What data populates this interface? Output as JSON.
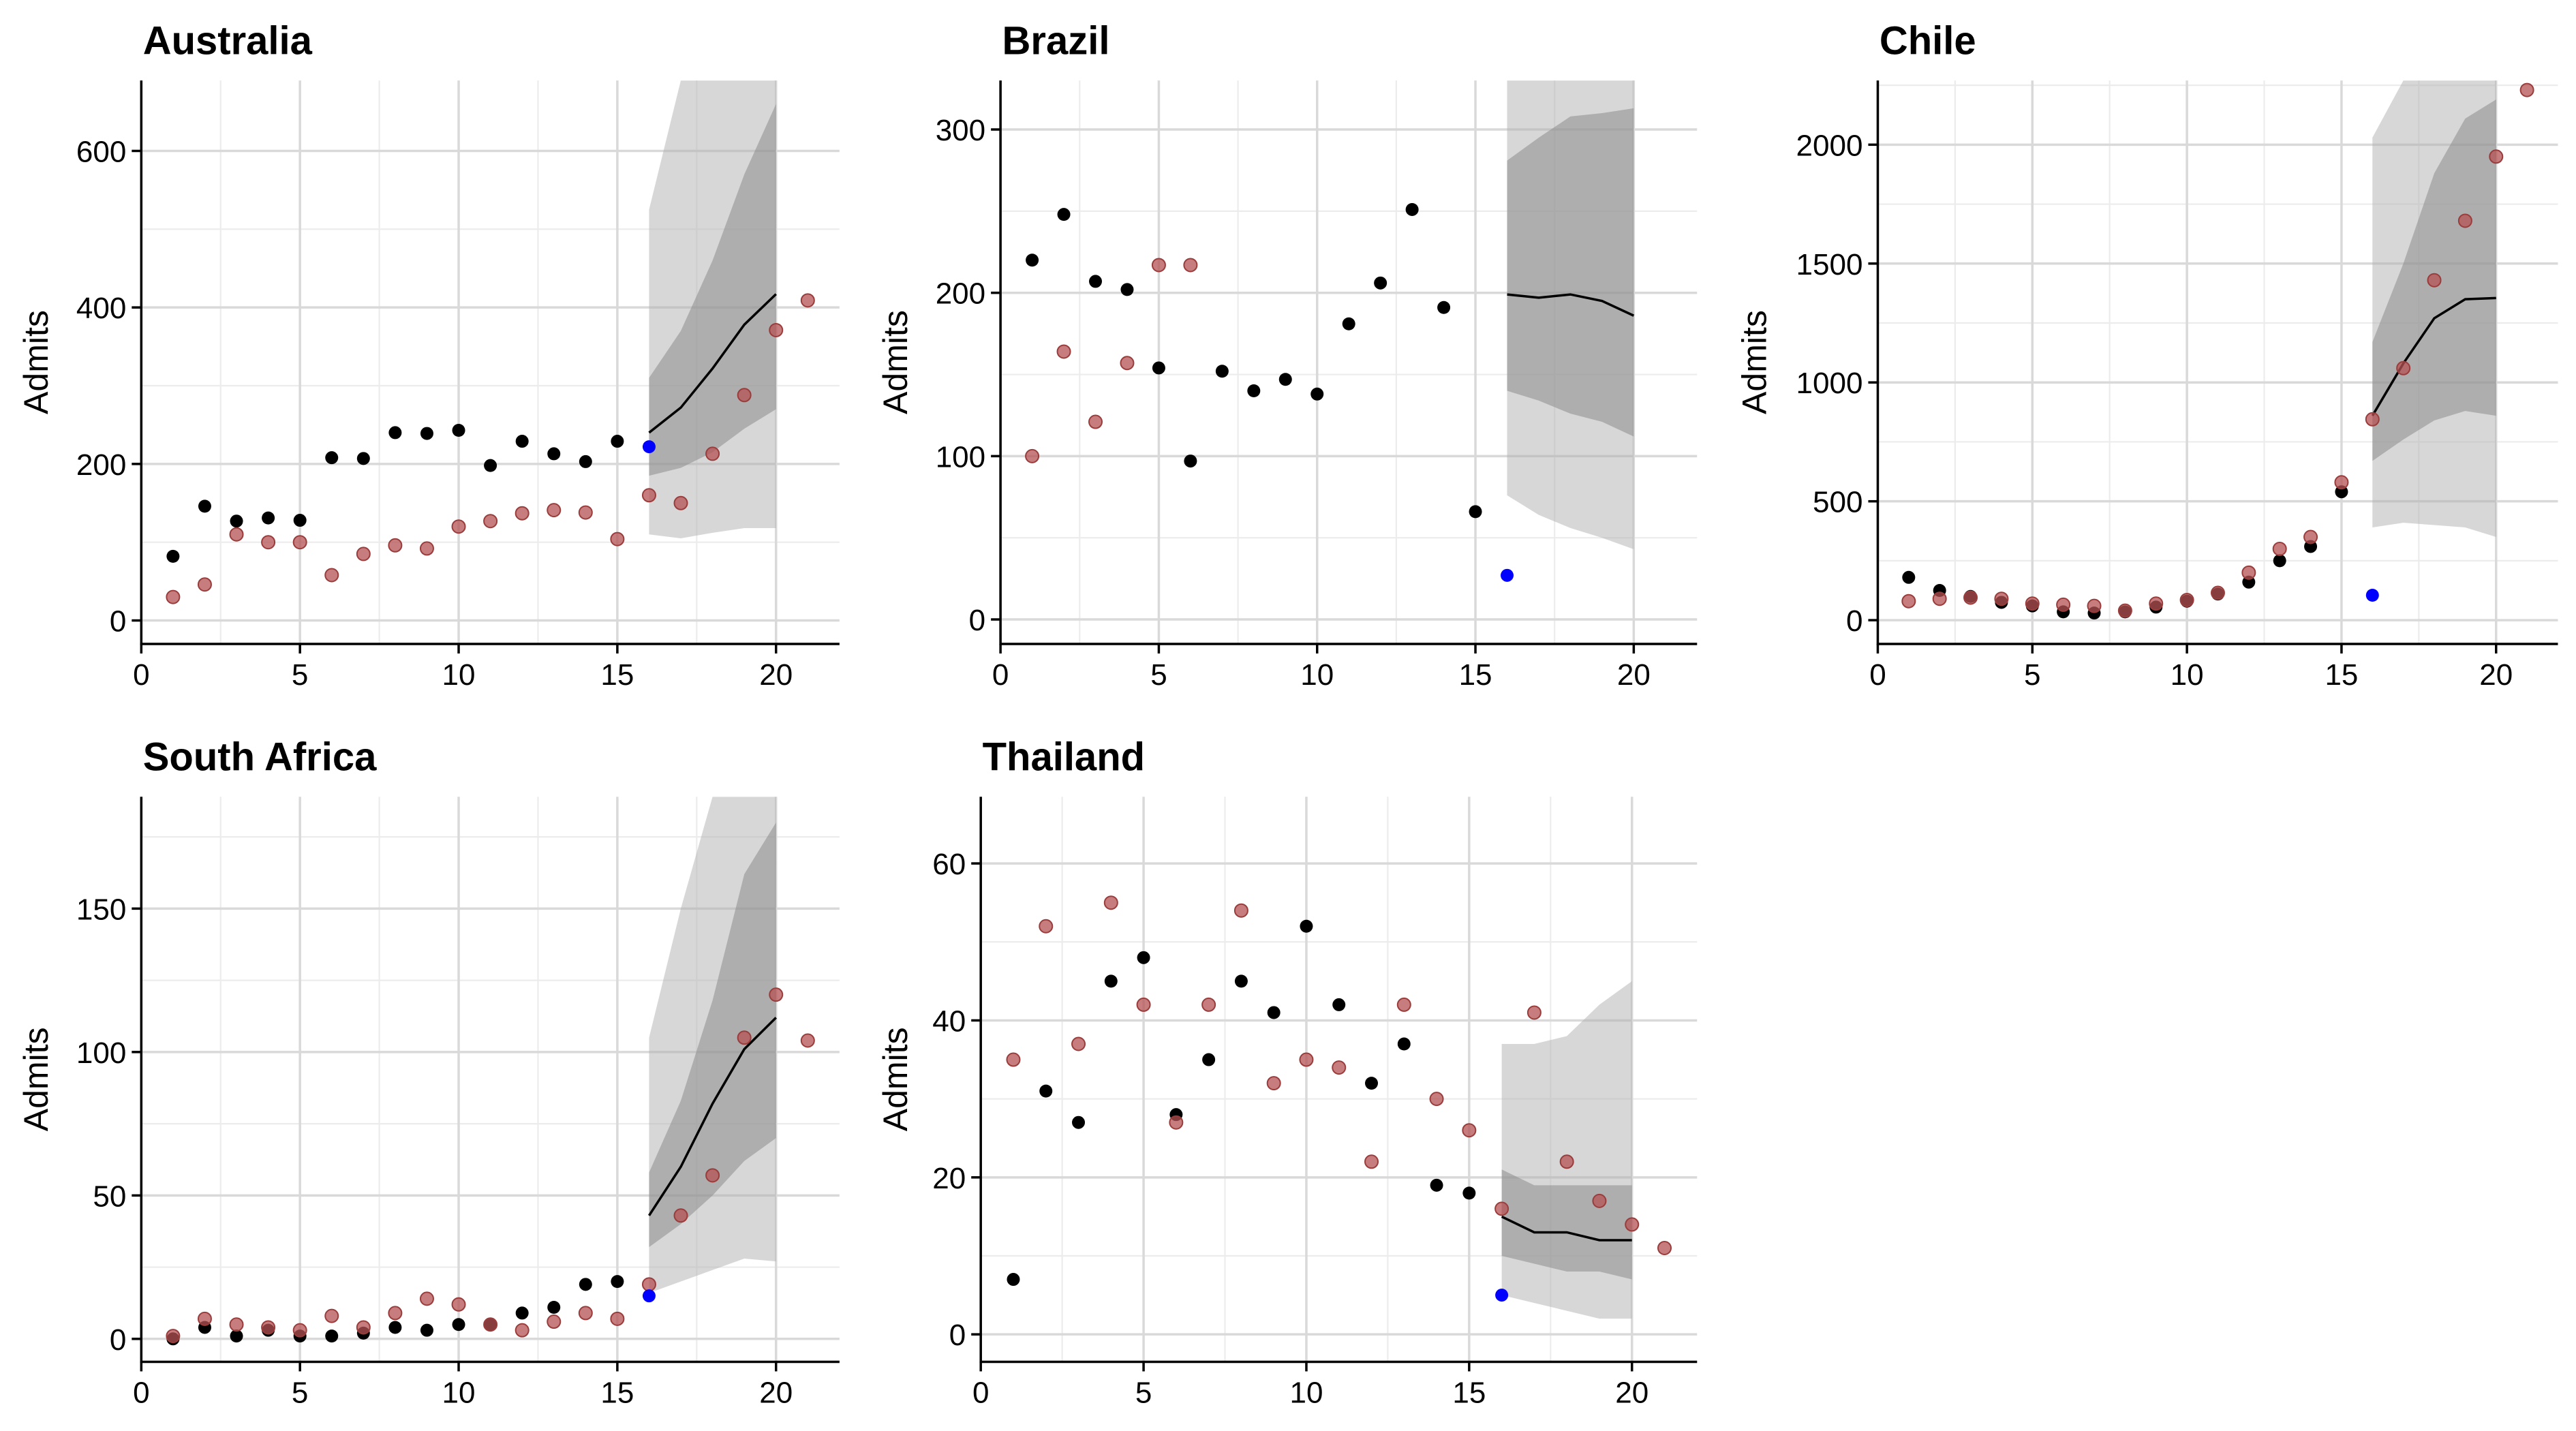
{
  "chart_data": [
    {
      "type": "scatter",
      "title": "Australia",
      "ylabel": "Admits",
      "xlim": [
        0,
        22
      ],
      "ylim": [
        -30,
        690
      ],
      "xticks": [
        0,
        5,
        10,
        15,
        20
      ],
      "yticks": [
        0,
        200,
        400,
        600
      ],
      "grid": true,
      "series": [
        {
          "role": "observed",
          "color": "#000000",
          "x": [
            1,
            2,
            3,
            4,
            5,
            6,
            7,
            8,
            9,
            10,
            11,
            12,
            13,
            14,
            15
          ],
          "y": [
            82,
            146,
            127,
            131,
            128,
            208,
            207,
            240,
            239,
            243,
            198,
            229,
            213,
            203,
            229
          ]
        },
        {
          "role": "comparison",
          "color": "#b45252",
          "x": [
            1,
            2,
            3,
            4,
            5,
            6,
            7,
            8,
            9,
            10,
            11,
            12,
            13,
            14,
            15,
            16,
            17,
            18,
            19,
            20,
            21
          ],
          "y": [
            30,
            46,
            110,
            100,
            100,
            58,
            85,
            96,
            92,
            120,
            127,
            137,
            141,
            138,
            104,
            160,
            150,
            213,
            288,
            371,
            409
          ]
        },
        {
          "role": "current",
          "color": "#0000ff",
          "x": [
            16
          ],
          "y": [
            222
          ]
        },
        {
          "role": "forecast",
          "color": "#000000",
          "x": [
            16,
            17,
            18,
            19,
            20
          ],
          "median": [
            240,
            272,
            322,
            378,
            417
          ],
          "inner": [
            [
              185,
              310
            ],
            [
              195,
              370
            ],
            [
              215,
              460
            ],
            [
              245,
              570
            ],
            [
              270,
              660
            ]
          ],
          "outer": [
            [
              110,
              525
            ],
            [
              105,
              690
            ],
            [
              112,
              690
            ],
            [
              118,
              690
            ],
            [
              118,
              690
            ]
          ]
        }
      ]
    },
    {
      "type": "scatter",
      "title": "Brazil",
      "ylabel": "Admits",
      "xlim": [
        0,
        22
      ],
      "ylim": [
        -15,
        330
      ],
      "xticks": [
        0,
        5,
        10,
        15,
        20
      ],
      "yticks": [
        0,
        100,
        200,
        300
      ],
      "grid": true,
      "series": [
        {
          "role": "observed",
          "color": "#000000",
          "x": [
            1,
            2,
            3,
            4,
            5,
            6,
            7,
            8,
            9,
            10,
            11,
            12,
            13,
            14,
            15
          ],
          "y": [
            220,
            248,
            207,
            202,
            154,
            97,
            152,
            140,
            147,
            138,
            181,
            206,
            251,
            191,
            66
          ]
        },
        {
          "role": "comparison",
          "color": "#b45252",
          "x": [
            1,
            2,
            3,
            4,
            5,
            6
          ],
          "y": [
            100,
            164,
            121,
            157,
            217,
            217
          ]
        },
        {
          "role": "current",
          "color": "#0000ff",
          "x": [
            16
          ],
          "y": [
            27
          ]
        },
        {
          "role": "forecast",
          "color": "#000000",
          "x": [
            16,
            17,
            18,
            19,
            20
          ],
          "median": [
            199,
            197,
            199,
            195,
            186
          ],
          "inner": [
            [
              140,
              281
            ],
            [
              134,
              295
            ],
            [
              126,
              308
            ],
            [
              121,
              310
            ],
            [
              112,
              313
            ]
          ],
          "outer": [
            [
              76,
              330
            ],
            [
              64,
              330
            ],
            [
              56,
              330
            ],
            [
              50,
              330
            ],
            [
              43,
              330
            ]
          ]
        }
      ]
    },
    {
      "type": "scatter",
      "title": "Chile",
      "ylabel": "Admits",
      "xlim": [
        0,
        22
      ],
      "ylim": [
        -100,
        2270
      ],
      "xticks": [
        0,
        5,
        10,
        15,
        20
      ],
      "yticks": [
        0,
        500,
        1000,
        1500,
        2000
      ],
      "grid": true,
      "series": [
        {
          "role": "observed",
          "color": "#000000",
          "x": [
            1,
            2,
            3,
            4,
            5,
            6,
            7,
            8,
            9,
            10,
            11,
            12,
            13,
            14,
            15
          ],
          "y": [
            180,
            125,
            100,
            75,
            60,
            35,
            30,
            35,
            55,
            80,
            110,
            160,
            250,
            310,
            540
          ]
        },
        {
          "role": "comparison",
          "color": "#b45252",
          "x": [
            1,
            2,
            3,
            4,
            5,
            6,
            7,
            8,
            9,
            10,
            11,
            12,
            13,
            14,
            15,
            16,
            17,
            18,
            19,
            20,
            21
          ],
          "y": [
            80,
            90,
            95,
            90,
            70,
            65,
            60,
            40,
            70,
            85,
            115,
            200,
            300,
            350,
            580,
            845,
            1060,
            1430,
            1680,
            1950,
            2230
          ]
        },
        {
          "role": "current",
          "color": "#0000ff",
          "x": [
            16
          ],
          "y": [
            105
          ]
        },
        {
          "role": "forecast",
          "color": "#000000",
          "x": [
            16,
            17,
            18,
            19,
            20
          ],
          "median": [
            860,
            1080,
            1270,
            1350,
            1355
          ],
          "inner": [
            [
              670,
              1170
            ],
            [
              760,
              1500
            ],
            [
              840,
              1880
            ],
            [
              880,
              2110
            ],
            [
              860,
              2190
            ]
          ],
          "outer": [
            [
              390,
              2030
            ],
            [
              410,
              2270
            ],
            [
              400,
              2270
            ],
            [
              390,
              2270
            ],
            [
              350,
              2270
            ]
          ]
        }
      ]
    },
    {
      "type": "scatter",
      "title": "South Africa",
      "ylabel": "Admits",
      "xlim": [
        0,
        22
      ],
      "ylim": [
        -8,
        189
      ],
      "xticks": [
        0,
        5,
        10,
        15,
        20
      ],
      "yticks": [
        0,
        50,
        100,
        150
      ],
      "grid": true,
      "series": [
        {
          "role": "observed",
          "color": "#000000",
          "x": [
            1,
            2,
            3,
            4,
            5,
            6,
            7,
            8,
            9,
            10,
            11,
            12,
            13,
            14,
            15
          ],
          "y": [
            0,
            4,
            1,
            3,
            1,
            1,
            2,
            4,
            3,
            5,
            5,
            9,
            11,
            19,
            20
          ]
        },
        {
          "role": "comparison",
          "color": "#b45252",
          "x": [
            1,
            2,
            3,
            4,
            5,
            6,
            7,
            8,
            9,
            10,
            11,
            12,
            13,
            14,
            15,
            16,
            17,
            18,
            19,
            20,
            21
          ],
          "y": [
            1,
            7,
            5,
            4,
            3,
            8,
            4,
            9,
            14,
            12,
            5,
            3,
            6,
            9,
            7,
            19,
            43,
            57,
            105,
            120,
            104
          ]
        },
        {
          "role": "current",
          "color": "#0000ff",
          "x": [
            16
          ],
          "y": [
            15
          ]
        },
        {
          "role": "forecast",
          "color": "#000000",
          "x": [
            16,
            17,
            18,
            19,
            20
          ],
          "median": [
            43,
            60,
            82,
            101,
            112
          ],
          "inner": [
            [
              32,
              58
            ],
            [
              40,
              83
            ],
            [
              50,
              118
            ],
            [
              62,
              162
            ],
            [
              70,
              180
            ]
          ],
          "outer": [
            [
              16,
              105
            ],
            [
              20,
              150
            ],
            [
              24,
              189
            ],
            [
              28,
              189
            ],
            [
              27,
              189
            ]
          ]
        }
      ]
    },
    {
      "type": "scatter",
      "title": "Thailand",
      "ylabel": "Admits",
      "xlim": [
        0,
        22
      ],
      "ylim": [
        -3.5,
        68.5
      ],
      "xticks": [
        0,
        5,
        10,
        15,
        20
      ],
      "yticks": [
        0,
        20,
        40,
        60
      ],
      "grid": true,
      "series": [
        {
          "role": "observed",
          "color": "#000000",
          "x": [
            1,
            2,
            3,
            4,
            5,
            6,
            7,
            8,
            9,
            10,
            11,
            12,
            13,
            14,
            15
          ],
          "y": [
            7,
            31,
            27,
            45,
            48,
            28,
            35,
            45,
            41,
            52,
            42,
            32,
            37,
            19,
            18
          ]
        },
        {
          "role": "comparison",
          "color": "#b45252",
          "x": [
            1,
            2,
            3,
            4,
            5,
            6,
            7,
            8,
            9,
            10,
            11,
            12,
            13,
            14,
            15,
            16,
            17,
            18,
            19,
            20,
            21
          ],
          "y": [
            35,
            52,
            37,
            55,
            42,
            27,
            42,
            54,
            32,
            35,
            34,
            22,
            42,
            30,
            26,
            16,
            41,
            22,
            17,
            14,
            11
          ]
        },
        {
          "role": "current",
          "color": "#0000ff",
          "x": [
            16
          ],
          "y": [
            5
          ]
        },
        {
          "role": "forecast",
          "color": "#000000",
          "x": [
            16,
            17,
            18,
            19,
            20
          ],
          "median": [
            15,
            13,
            13,
            12,
            12
          ],
          "inner": [
            [
              10,
              21
            ],
            [
              9,
              19
            ],
            [
              8,
              19
            ],
            [
              8,
              19
            ],
            [
              7,
              19
            ]
          ],
          "outer": [
            [
              5,
              37
            ],
            [
              4,
              37
            ],
            [
              3,
              38
            ],
            [
              2,
              42
            ],
            [
              2,
              45
            ]
          ]
        }
      ]
    }
  ]
}
